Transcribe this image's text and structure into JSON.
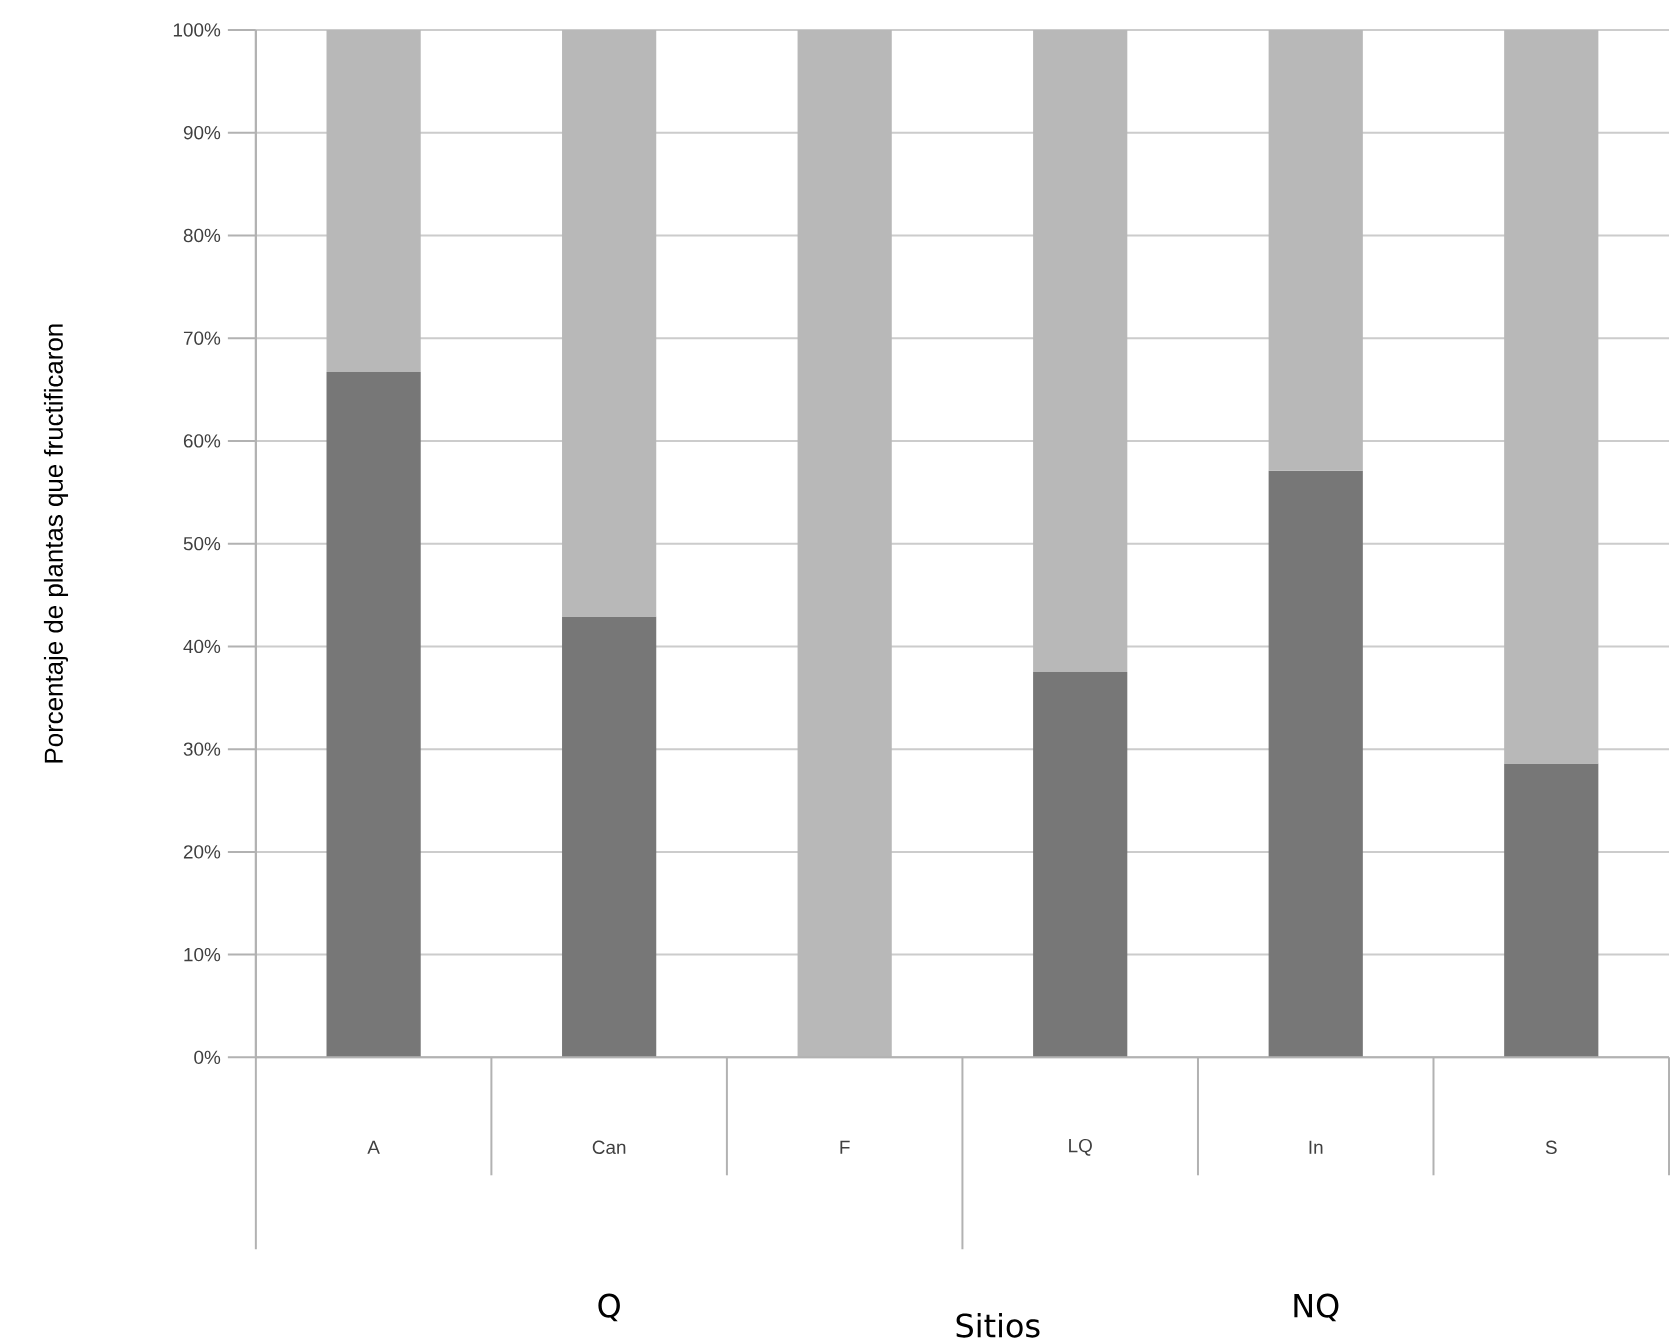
{
  "chart_data": {
    "type": "bar",
    "stacked": true,
    "ylabel": "Porcentaje de plantas que fructificaron",
    "xlabel": "Sitios",
    "categories": [
      "A",
      "Can",
      "F",
      "LQ",
      "In",
      "S"
    ],
    "series": [
      {
        "color": "#777777",
        "values": [
          66.7,
          42.9,
          0,
          37.5,
          57.1,
          28.6
        ]
      },
      {
        "color": "#b8b8b8",
        "values": [
          33.3,
          57.1,
          100,
          62.5,
          42.9,
          71.4
        ]
      }
    ],
    "ylim": [
      0,
      100
    ],
    "yticks": [
      {
        "value": 0,
        "label": "0%"
      },
      {
        "value": 10,
        "label": "10%"
      },
      {
        "value": 20,
        "label": "20%"
      },
      {
        "value": 30,
        "label": "30%"
      },
      {
        "value": 40,
        "label": "40%"
      },
      {
        "value": 50,
        "label": "50%"
      },
      {
        "value": 60,
        "label": "60%"
      },
      {
        "value": 70,
        "label": "70%"
      },
      {
        "value": 80,
        "label": "80%"
      },
      {
        "value": 90,
        "label": "90%"
      },
      {
        "value": 100,
        "label": "100%"
      }
    ],
    "grid": "y",
    "annotations": [
      "Q",
      "NQ"
    ]
  }
}
